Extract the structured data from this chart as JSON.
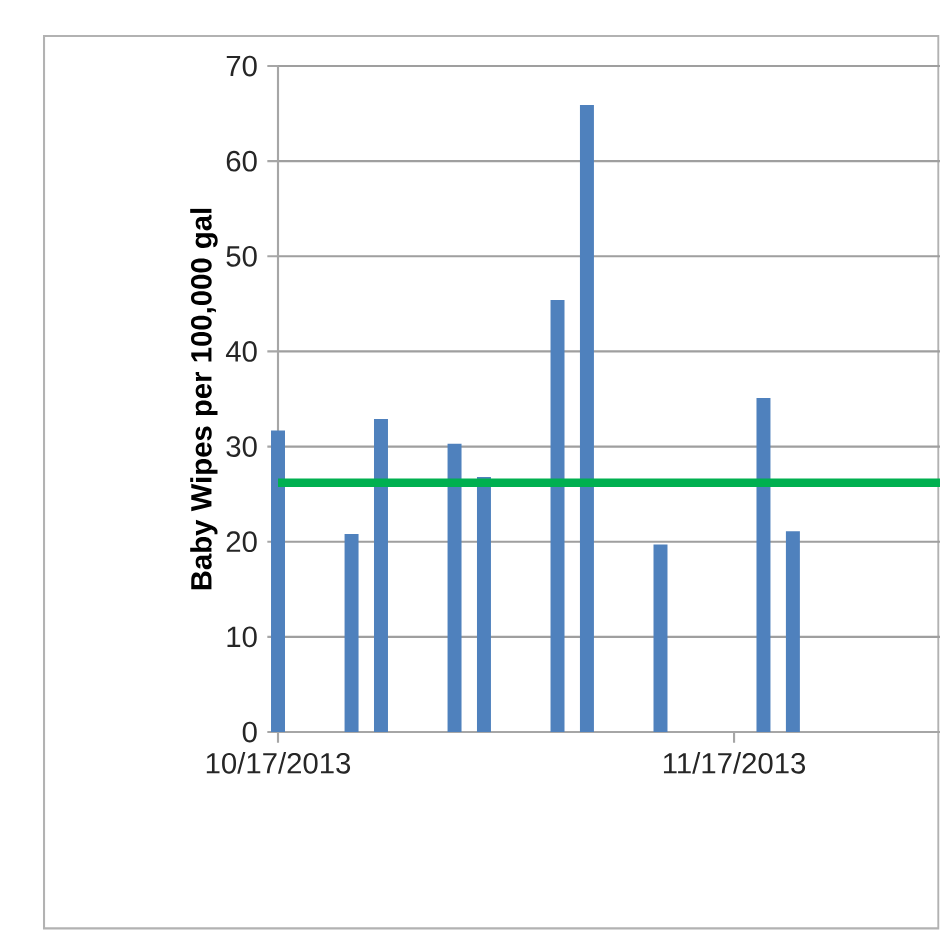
{
  "chart_data": {
    "type": "bar",
    "ylabel": "Baby Wipes per 100,000 gal",
    "x": [
      "2013-10-17",
      "2013-10-22",
      "2013-10-24",
      "2013-10-29",
      "2013-10-31",
      "2013-11-05",
      "2013-11-07",
      "2013-11-12",
      "2013-11-19",
      "2013-11-21"
    ],
    "values": [
      31.7,
      20.8,
      32.9,
      30.3,
      26.8,
      45.4,
      65.9,
      19.7,
      35.1,
      21.1
    ],
    "color": "#4f81bd",
    "xlim": [
      "2013-10-17",
      "2013-12-01"
    ],
    "xticks": [
      {
        "value": "2013-10-17",
        "label": "10/17/2013"
      },
      {
        "value": "2013-11-17",
        "label": "11/17/2013"
      }
    ],
    "ylim": [
      0,
      70
    ],
    "yticks": [
      0,
      10,
      20,
      30,
      40,
      50,
      60,
      70
    ],
    "grid": "y",
    "ref_lines": [
      {
        "axis": "y",
        "value": 26.2,
        "color": "#00b050"
      }
    ]
  }
}
